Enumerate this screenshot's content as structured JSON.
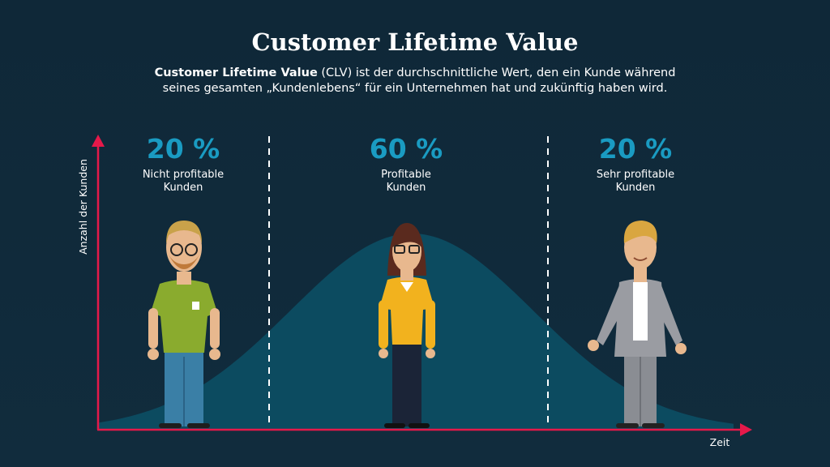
{
  "title": "Customer Lifetime Value",
  "intro": {
    "bold": "Customer Lifetime Value",
    "line1": " (CLV) ist der durchschnittliche Wert, den ein Kunde während",
    "line2": "seines gesamten „Kundenlebens“ für ein Unternehmen hat und zukünftig haben wird."
  },
  "y_axis_label": "Anzahl der Kunden",
  "x_axis_label": "Zeit",
  "segments": [
    {
      "percent": "20 %",
      "caption": [
        "Nicht profitable",
        "Kunden"
      ]
    },
    {
      "percent": "60 %",
      "caption": [
        "Profitable",
        "Kunden"
      ]
    },
    {
      "percent": "20 %",
      "caption": [
        "Sehr profitable",
        "Kunden"
      ]
    }
  ]
}
